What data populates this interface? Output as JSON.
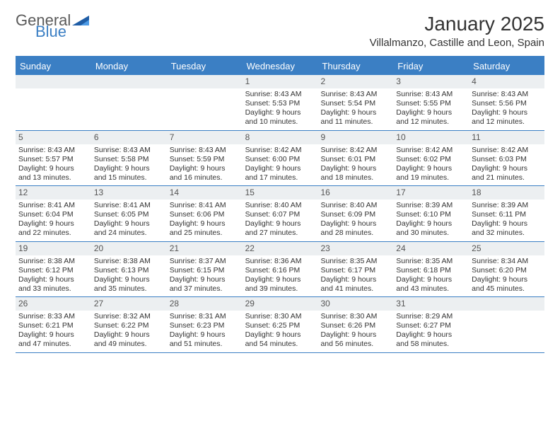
{
  "logo": {
    "word1": "General",
    "word2": "Blue"
  },
  "title": "January 2025",
  "location": "Villalmanzo, Castille and Leon, Spain",
  "colors": {
    "accent": "#3b7fc4",
    "dow_bg": "#3b7fc4",
    "dow_text": "#ffffff",
    "daynum_bg": "#eceff1",
    "text": "#333333",
    "border": "#3b7fc4"
  },
  "day_names": [
    "Sunday",
    "Monday",
    "Tuesday",
    "Wednesday",
    "Thursday",
    "Friday",
    "Saturday"
  ],
  "weeks": [
    [
      null,
      null,
      null,
      {
        "n": "1",
        "sunrise": "8:43 AM",
        "sunset": "5:53 PM",
        "dl1": "Daylight: 9 hours",
        "dl2": "and 10 minutes."
      },
      {
        "n": "2",
        "sunrise": "8:43 AM",
        "sunset": "5:54 PM",
        "dl1": "Daylight: 9 hours",
        "dl2": "and 11 minutes."
      },
      {
        "n": "3",
        "sunrise": "8:43 AM",
        "sunset": "5:55 PM",
        "dl1": "Daylight: 9 hours",
        "dl2": "and 12 minutes."
      },
      {
        "n": "4",
        "sunrise": "8:43 AM",
        "sunset": "5:56 PM",
        "dl1": "Daylight: 9 hours",
        "dl2": "and 12 minutes."
      }
    ],
    [
      {
        "n": "5",
        "sunrise": "8:43 AM",
        "sunset": "5:57 PM",
        "dl1": "Daylight: 9 hours",
        "dl2": "and 13 minutes."
      },
      {
        "n": "6",
        "sunrise": "8:43 AM",
        "sunset": "5:58 PM",
        "dl1": "Daylight: 9 hours",
        "dl2": "and 15 minutes."
      },
      {
        "n": "7",
        "sunrise": "8:43 AM",
        "sunset": "5:59 PM",
        "dl1": "Daylight: 9 hours",
        "dl2": "and 16 minutes."
      },
      {
        "n": "8",
        "sunrise": "8:42 AM",
        "sunset": "6:00 PM",
        "dl1": "Daylight: 9 hours",
        "dl2": "and 17 minutes."
      },
      {
        "n": "9",
        "sunrise": "8:42 AM",
        "sunset": "6:01 PM",
        "dl1": "Daylight: 9 hours",
        "dl2": "and 18 minutes."
      },
      {
        "n": "10",
        "sunrise": "8:42 AM",
        "sunset": "6:02 PM",
        "dl1": "Daylight: 9 hours",
        "dl2": "and 19 minutes."
      },
      {
        "n": "11",
        "sunrise": "8:42 AM",
        "sunset": "6:03 PM",
        "dl1": "Daylight: 9 hours",
        "dl2": "and 21 minutes."
      }
    ],
    [
      {
        "n": "12",
        "sunrise": "8:41 AM",
        "sunset": "6:04 PM",
        "dl1": "Daylight: 9 hours",
        "dl2": "and 22 minutes."
      },
      {
        "n": "13",
        "sunrise": "8:41 AM",
        "sunset": "6:05 PM",
        "dl1": "Daylight: 9 hours",
        "dl2": "and 24 minutes."
      },
      {
        "n": "14",
        "sunrise": "8:41 AM",
        "sunset": "6:06 PM",
        "dl1": "Daylight: 9 hours",
        "dl2": "and 25 minutes."
      },
      {
        "n": "15",
        "sunrise": "8:40 AM",
        "sunset": "6:07 PM",
        "dl1": "Daylight: 9 hours",
        "dl2": "and 27 minutes."
      },
      {
        "n": "16",
        "sunrise": "8:40 AM",
        "sunset": "6:09 PM",
        "dl1": "Daylight: 9 hours",
        "dl2": "and 28 minutes."
      },
      {
        "n": "17",
        "sunrise": "8:39 AM",
        "sunset": "6:10 PM",
        "dl1": "Daylight: 9 hours",
        "dl2": "and 30 minutes."
      },
      {
        "n": "18",
        "sunrise": "8:39 AM",
        "sunset": "6:11 PM",
        "dl1": "Daylight: 9 hours",
        "dl2": "and 32 minutes."
      }
    ],
    [
      {
        "n": "19",
        "sunrise": "8:38 AM",
        "sunset": "6:12 PM",
        "dl1": "Daylight: 9 hours",
        "dl2": "and 33 minutes."
      },
      {
        "n": "20",
        "sunrise": "8:38 AM",
        "sunset": "6:13 PM",
        "dl1": "Daylight: 9 hours",
        "dl2": "and 35 minutes."
      },
      {
        "n": "21",
        "sunrise": "8:37 AM",
        "sunset": "6:15 PM",
        "dl1": "Daylight: 9 hours",
        "dl2": "and 37 minutes."
      },
      {
        "n": "22",
        "sunrise": "8:36 AM",
        "sunset": "6:16 PM",
        "dl1": "Daylight: 9 hours",
        "dl2": "and 39 minutes."
      },
      {
        "n": "23",
        "sunrise": "8:35 AM",
        "sunset": "6:17 PM",
        "dl1": "Daylight: 9 hours",
        "dl2": "and 41 minutes."
      },
      {
        "n": "24",
        "sunrise": "8:35 AM",
        "sunset": "6:18 PM",
        "dl1": "Daylight: 9 hours",
        "dl2": "and 43 minutes."
      },
      {
        "n": "25",
        "sunrise": "8:34 AM",
        "sunset": "6:20 PM",
        "dl1": "Daylight: 9 hours",
        "dl2": "and 45 minutes."
      }
    ],
    [
      {
        "n": "26",
        "sunrise": "8:33 AM",
        "sunset": "6:21 PM",
        "dl1": "Daylight: 9 hours",
        "dl2": "and 47 minutes."
      },
      {
        "n": "27",
        "sunrise": "8:32 AM",
        "sunset": "6:22 PM",
        "dl1": "Daylight: 9 hours",
        "dl2": "and 49 minutes."
      },
      {
        "n": "28",
        "sunrise": "8:31 AM",
        "sunset": "6:23 PM",
        "dl1": "Daylight: 9 hours",
        "dl2": "and 51 minutes."
      },
      {
        "n": "29",
        "sunrise": "8:30 AM",
        "sunset": "6:25 PM",
        "dl1": "Daylight: 9 hours",
        "dl2": "and 54 minutes."
      },
      {
        "n": "30",
        "sunrise": "8:30 AM",
        "sunset": "6:26 PM",
        "dl1": "Daylight: 9 hours",
        "dl2": "and 56 minutes."
      },
      {
        "n": "31",
        "sunrise": "8:29 AM",
        "sunset": "6:27 PM",
        "dl1": "Daylight: 9 hours",
        "dl2": "and 58 minutes."
      },
      null
    ]
  ],
  "labels": {
    "sunrise": "Sunrise:",
    "sunset": "Sunset:"
  }
}
